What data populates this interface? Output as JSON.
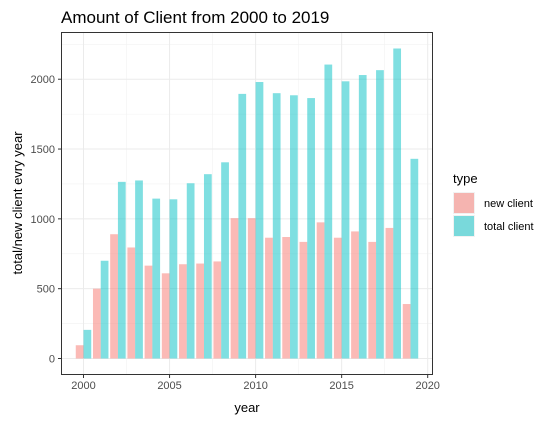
{
  "chart_data": {
    "type": "bar",
    "title": "Amount of Client from 2000 to 2019",
    "xlabel": "year",
    "ylabel": "total/new client evry year",
    "x": [
      2000,
      2001,
      2002,
      2003,
      2004,
      2005,
      2006,
      2007,
      2008,
      2009,
      2010,
      2011,
      2012,
      2013,
      2014,
      2015,
      2016,
      2017,
      2018,
      2019
    ],
    "series": [
      {
        "name": "new client",
        "color": "#F8766D",
        "values": [
          95,
          500,
          890,
          795,
          665,
          610,
          675,
          680,
          695,
          1005,
          1005,
          865,
          870,
          835,
          975,
          865,
          910,
          835,
          935,
          390
        ]
      },
      {
        "name": "total client",
        "color": "#00BFC4",
        "values": [
          205,
          700,
          1265,
          1275,
          1145,
          1140,
          1255,
          1320,
          1405,
          1895,
          1980,
          1900,
          1885,
          1865,
          2105,
          1985,
          2030,
          2065,
          2220,
          1430
        ]
      }
    ],
    "bar_opacity": 0.5,
    "xticks": [
      2000,
      2005,
      2010,
      2015,
      2020
    ],
    "yticks": [
      0,
      500,
      1000,
      1500,
      2000
    ],
    "xlim": [
      1998.75,
      2020.25
    ],
    "ylim": [
      -111,
      2331
    ],
    "grid": true,
    "legend": {
      "title": "type",
      "position": "right",
      "entries": [
        "new client",
        "total client"
      ]
    }
  }
}
